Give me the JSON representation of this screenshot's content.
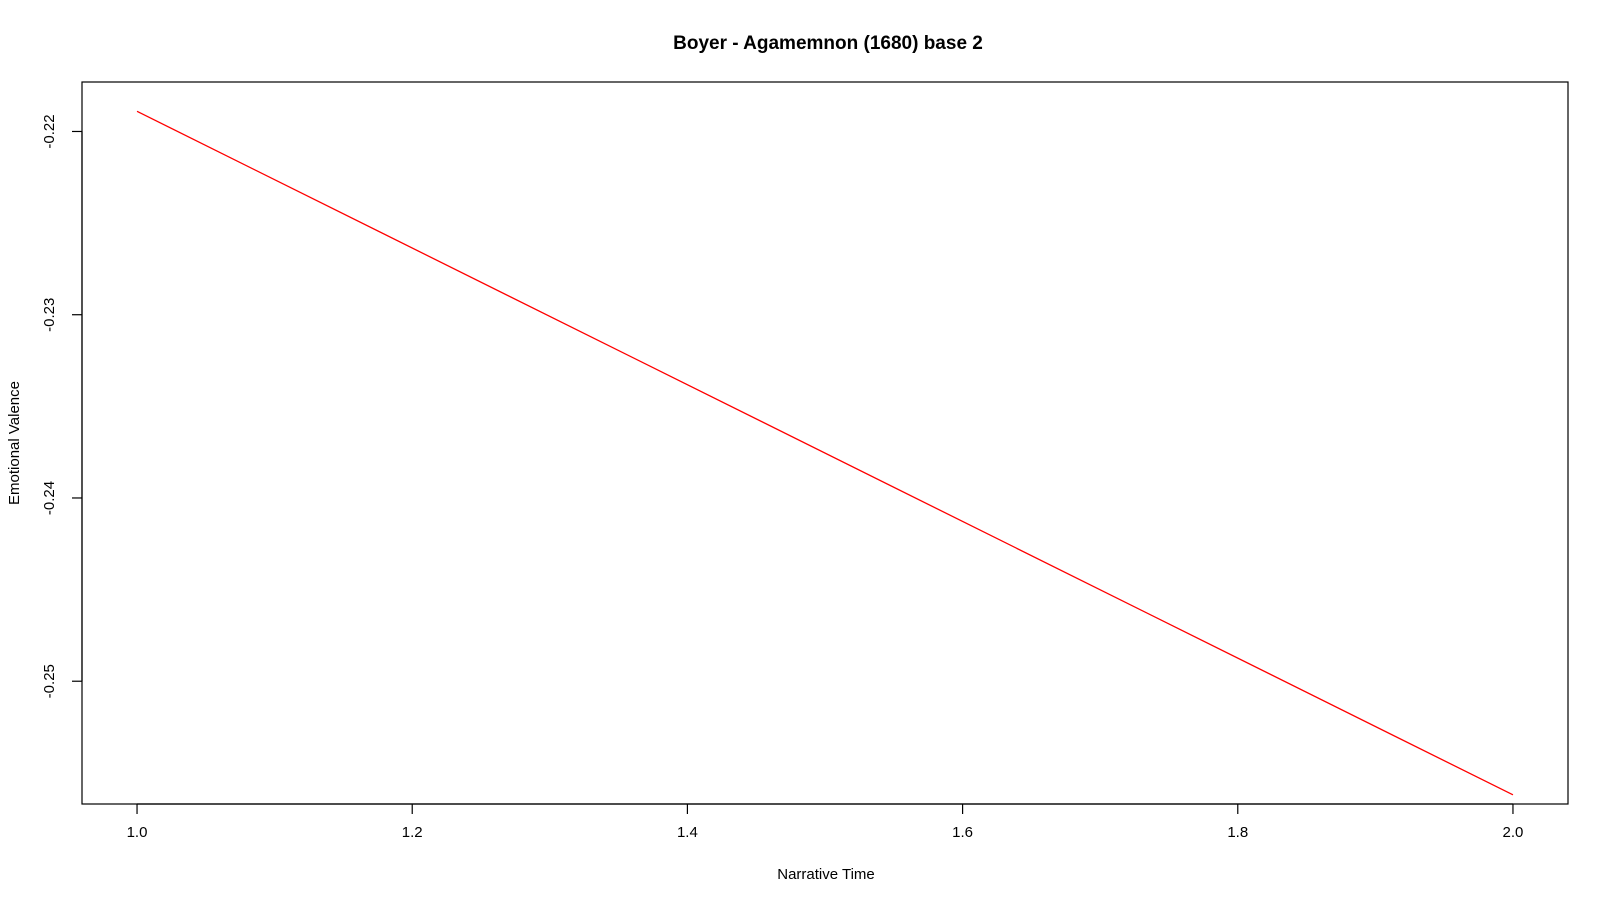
{
  "chart_data": {
    "type": "line",
    "title": "Boyer - Agamemnon (1680) base 2",
    "xlabel": "Narrative Time",
    "ylabel": "Emotional Valence",
    "x_ticks": [
      "1.0",
      "1.2",
      "1.4",
      "1.6",
      "1.8",
      "2.0"
    ],
    "y_ticks": [
      "-0.22",
      "-0.23",
      "-0.24",
      "-0.25"
    ],
    "xlim": [
      0.96,
      2.04
    ],
    "ylim": [
      -0.2567,
      -0.2173
    ],
    "grid": false,
    "series": [
      {
        "color": "#ff0000",
        "x": [
          1.0,
          2.0
        ],
        "y": [
          -0.2189,
          -0.2562
        ]
      }
    ]
  }
}
